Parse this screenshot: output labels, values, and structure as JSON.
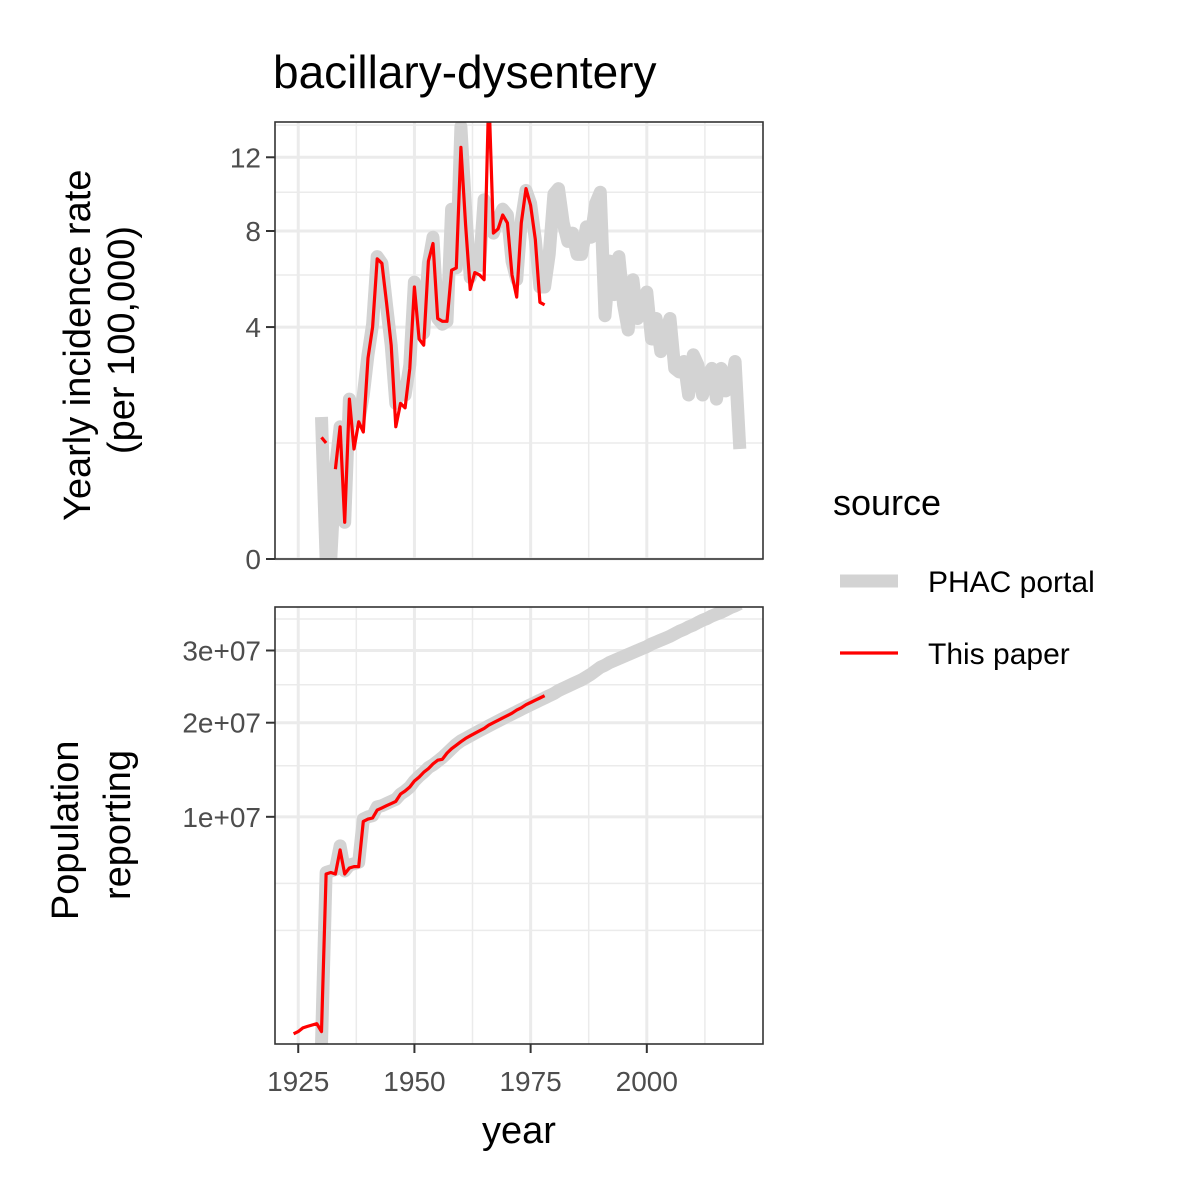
{
  "chart_data": {
    "type": "line",
    "title": "bacillary-dysentery",
    "xlabel": "year",
    "x_ticks": [
      1925,
      1950,
      1975,
      2000
    ],
    "xlim": [
      1920,
      2025
    ],
    "legend": {
      "title": "source",
      "placement": "right",
      "entries": [
        {
          "name": "PHAC portal",
          "color": "#d3d3d3"
        },
        {
          "name": "This paper",
          "color": "#ff0000"
        }
      ]
    },
    "panels": [
      {
        "id": "incidence",
        "ylabel_lines": [
          "Yearly incidence rate",
          "(per 100,000)"
        ],
        "scale": "sqrt",
        "ylim": [
          0,
          14.2
        ],
        "y_ticks": [
          0,
          4,
          8,
          12
        ],
        "y_tick_labels": [
          "0",
          "4",
          "8",
          "12"
        ],
        "y_minor": [
          1,
          6,
          10,
          14
        ],
        "series": [
          {
            "name": "PHAC portal",
            "color": "#d3d3d3",
            "x": [
              1924,
              1925,
              1926,
              1927,
              1928,
              1929,
              1930,
              1931,
              1932,
              1933,
              1934,
              1935,
              1936,
              1937,
              1938,
              1939,
              1940,
              1941,
              1942,
              1943,
              1944,
              1945,
              1946,
              1947,
              1948,
              1949,
              1950,
              1951,
              1952,
              1953,
              1954,
              1955,
              1956,
              1957,
              1958,
              1959,
              1960,
              1961,
              1962,
              1963,
              1964,
              1965,
              1966,
              1967,
              1968,
              1969,
              1970,
              1971,
              1972,
              1973,
              1974,
              1975,
              1976,
              1977,
              1978,
              1979,
              1980,
              1981,
              1982,
              1983,
              1984,
              1985,
              1986,
              1987,
              1988,
              1989,
              1990,
              1991,
              1992,
              1993,
              1994,
              1995,
              1996,
              1997,
              1998,
              1999,
              2000,
              2001,
              2002,
              2003,
              2004,
              2005,
              2006,
              2007,
              2008,
              2009,
              2010,
              2011,
              2012,
              2013,
              2014,
              2015,
              2016,
              2017,
              2018,
              2019,
              2020
            ],
            "y": [
              null,
              null,
              null,
              null,
              null,
              null,
              1.5,
              0.0,
              0.0,
              0.6,
              1.3,
              0.1,
              1.9,
              1.5,
              1.4,
              2.0,
              3.1,
              4.1,
              6.8,
              6.5,
              4.8,
              3.4,
              1.8,
              2.2,
              2.0,
              2.8,
              5.7,
              3.9,
              3.8,
              6.5,
              7.7,
              4.3,
              4.1,
              4.2,
              9.1,
              6.3,
              13.9,
              9.1,
              5.9,
              6.5,
              6.4,
              9.6,
              8.7,
              7.9,
              8.6,
              9.1,
              8.8,
              6.6,
              5.8,
              8.5,
              10.1,
              9.4,
              7.6,
              5.5,
              5.5,
              6.9,
              9.9,
              10.2,
              8.4,
              7.5,
              7.9,
              6.9,
              6.9,
              8.2,
              7.7,
              9.4,
              10.0,
              4.4,
              6.6,
              5.2,
              6.8,
              4.8,
              3.9,
              5.8,
              4.3,
              4.6,
              5.3,
              3.6,
              4.3,
              3.2,
              3.8,
              4.3,
              2.7,
              2.6,
              2.9,
              2.0,
              3.1,
              2.8,
              2.0,
              2.5,
              2.7,
              1.9,
              2.7,
              2.1,
              2.2,
              2.9,
              0.9
            ]
          },
          {
            "name": "This paper",
            "color": "#ff0000",
            "x": [
              1924,
              1925,
              1926,
              1927,
              1928,
              1929,
              1930,
              1931,
              1932,
              1933,
              1934,
              1935,
              1936,
              1937,
              1938,
              1939,
              1940,
              1941,
              1942,
              1943,
              1944,
              1945,
              1946,
              1947,
              1948,
              1949,
              1950,
              1951,
              1952,
              1953,
              1954,
              1955,
              1956,
              1957,
              1958,
              1959,
              1960,
              1961,
              1962,
              1963,
              1964,
              1965,
              1966,
              1967,
              1968,
              1969,
              1970,
              1971,
              1972,
              1973,
              1974,
              1975,
              1976,
              1977,
              1978
            ],
            "y": [
              null,
              null,
              null,
              null,
              null,
              null,
              1.1,
              1.0,
              null,
              0.6,
              1.3,
              0.1,
              1.9,
              0.9,
              1.4,
              1.2,
              3.0,
              4.0,
              6.7,
              6.5,
              4.9,
              3.4,
              1.3,
              1.8,
              1.7,
              2.7,
              5.5,
              3.6,
              3.4,
              6.6,
              7.4,
              4.3,
              4.2,
              4.2,
              6.2,
              6.3,
              12.6,
              8.3,
              5.4,
              6.1,
              6.0,
              5.8,
              16.2,
              7.9,
              8.1,
              8.8,
              8.4,
              6.0,
              5.1,
              8.4,
              10.2,
              9.3,
              7.6,
              4.9,
              4.8
            ]
          }
        ]
      },
      {
        "id": "population",
        "ylabel_lines": [
          "Population",
          "reporting"
        ],
        "scale": "sqrt",
        "ylim": [
          0,
          37000000
        ],
        "y_ticks": [
          10000000,
          20000000,
          30000000
        ],
        "y_tick_labels": [
          "1e+07",
          "2e+07",
          "3e+07"
        ],
        "y_minor": [
          2500000,
          5000000,
          15000000,
          25000000,
          35000000
        ],
        "series": [
          {
            "name": "PHAC portal",
            "color": "#d3d3d3",
            "x": [
              1924,
              1925,
              1926,
              1927,
              1928,
              1929,
              1930,
              1931,
              1932,
              1933,
              1934,
              1935,
              1936,
              1937,
              1938,
              1939,
              1940,
              1941,
              1942,
              1943,
              1944,
              1945,
              1946,
              1947,
              1948,
              1949,
              1950,
              1951,
              1952,
              1953,
              1954,
              1955,
              1956,
              1957,
              1958,
              1959,
              1960,
              1961,
              1962,
              1963,
              1964,
              1965,
              1966,
              1967,
              1968,
              1969,
              1970,
              1971,
              1972,
              1973,
              1974,
              1975,
              1976,
              1977,
              1978,
              1979,
              1980,
              1981,
              1982,
              1983,
              1984,
              1985,
              1986,
              1987,
              1988,
              1989,
              1990,
              1991,
              1992,
              1993,
              1994,
              1995,
              1996,
              1997,
              1998,
              1999,
              2000,
              2001,
              2002,
              2003,
              2004,
              2005,
              2006,
              2007,
              2008,
              2009,
              2010,
              2011,
              2012,
              2013,
              2014,
              2015,
              2016,
              2017,
              2018,
              2019,
              2020
            ],
            "y": [
              null,
              null,
              null,
              null,
              null,
              null,
              0,
              5700000,
              5800000,
              5900000,
              7600000,
              5800000,
              6200000,
              6300000,
              6400000,
              9800000,
              10000000,
              10100000,
              10900000,
              11000000,
              11200000,
              11400000,
              11600000,
              12100000,
              12400000,
              12800000,
              13400000,
              13900000,
              14300000,
              14800000,
              15100000,
              15500000,
              15900000,
              16400000,
              16900000,
              17400000,
              17800000,
              18100000,
              18400000,
              18700000,
              19000000,
              19300000,
              19600000,
              19900000,
              20200000,
              20500000,
              20800000,
              21100000,
              21400000,
              21700000,
              22000000,
              22300000,
              22600000,
              22900000,
              23200000,
              23500000,
              23800000,
              24200000,
              24500000,
              24800000,
              25100000,
              25400000,
              25700000,
              26100000,
              26500000,
              27000000,
              27500000,
              27800000,
              28200000,
              28500000,
              28800000,
              29100000,
              29400000,
              29700000,
              30000000,
              30300000,
              30600000,
              31000000,
              31300000,
              31600000,
              31900000,
              32200000,
              32600000,
              33000000,
              33300000,
              33700000,
              34000000,
              34400000,
              34800000,
              35100000,
              35500000,
              35800000,
              36100000,
              36500000,
              36900000,
              37200000,
              37600000
            ]
          },
          {
            "name": "This paper",
            "color": "#ff0000",
            "x": [
              1924,
              1925,
              1926,
              1927,
              1928,
              1929,
              1930,
              1931,
              1932,
              1933,
              1934,
              1935,
              1936,
              1937,
              1938,
              1939,
              1940,
              1941,
              1942,
              1943,
              1944,
              1945,
              1946,
              1947,
              1948,
              1949,
              1950,
              1951,
              1952,
              1953,
              1954,
              1955,
              1956,
              1957,
              1958,
              1959,
              1960,
              1961,
              1962,
              1963,
              1964,
              1965,
              1966,
              1967,
              1968,
              1969,
              1970,
              1971,
              1972,
              1973,
              1974,
              1975,
              1976,
              1977,
              1978
            ],
            "y": [
              20000,
              30000,
              50000,
              60000,
              70000,
              80000,
              30000,
              5600000,
              5700000,
              5600000,
              7300000,
              5600000,
              6000000,
              6100000,
              6100000,
              9600000,
              9800000,
              9900000,
              10600000,
              10800000,
              11000000,
              11200000,
              11400000,
              12100000,
              12400000,
              12800000,
              13400000,
              13800000,
              14300000,
              14700000,
              15200000,
              15600000,
              15700000,
              16400000,
              16900000,
              17300000,
              17700000,
              18100000,
              18400000,
              18700000,
              19000000,
              19300000,
              19700000,
              20000000,
              20300000,
              20600000,
              20900000,
              21200000,
              21600000,
              21900000,
              22300000,
              22600000,
              22900000,
              23200000,
              23500000
            ]
          }
        ]
      }
    ]
  }
}
